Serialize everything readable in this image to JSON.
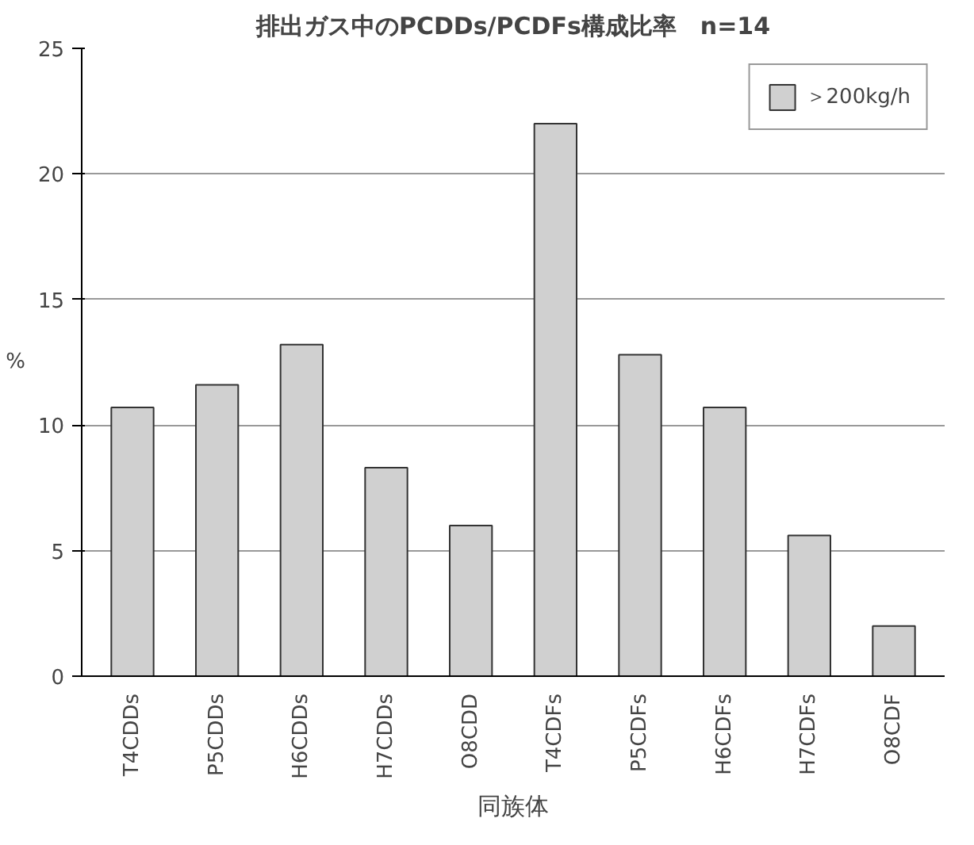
{
  "chart_data": {
    "type": "bar",
    "title": "排出ガス中のPCDDs/PCDFs構成比率　n=14",
    "xlabel": "同族体",
    "ylabel": "%",
    "categories": [
      "T4CDDs",
      "P5CDDs",
      "H6CDDs",
      "H7CDDs",
      "O8CDD",
      "T4CDFs",
      "P5CDFs",
      "H6CDFs",
      "H7CDFs",
      "O8CDF"
    ],
    "series": [
      {
        "name": "＞200kg/h",
        "color": "#d0d0d0",
        "values": [
          10.7,
          11.6,
          13.2,
          8.3,
          6.0,
          22.0,
          12.8,
          10.7,
          5.6,
          2.0
        ]
      }
    ],
    "ylim": [
      0,
      25
    ],
    "yticks": [
      0,
      5,
      10,
      15,
      20,
      25
    ],
    "grid": "y",
    "legend": "top right"
  }
}
